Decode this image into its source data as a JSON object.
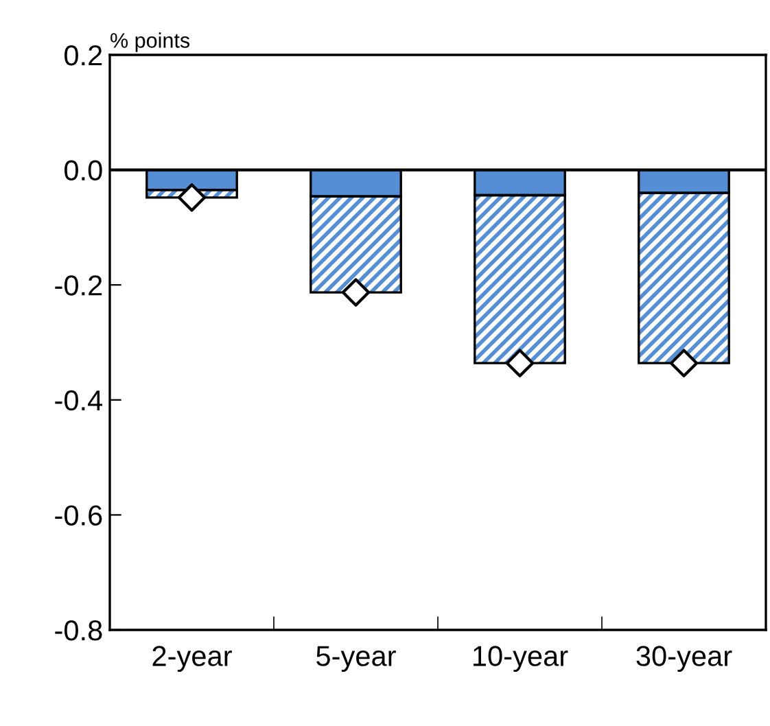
{
  "chart_data": {
    "type": "bar",
    "stacked": true,
    "ylabel": "% points",
    "categories": [
      "2-year",
      "5-year",
      "10-year",
      "30-year"
    ],
    "series": [
      {
        "color": "#558ed5",
        "values": [
          -0.035,
          -0.046,
          -0.044,
          -0.04
        ]
      },
      {
        "color": "#558ed5",
        "values": [
          -0.013,
          -0.167,
          -0.292,
          -0.296
        ]
      },
      {
        "type": "scatter",
        "color": "#ffffff",
        "marker": "diamond",
        "x": [
          "2-year",
          "5-year",
          "10-year",
          "30-year"
        ],
        "values": [
          -0.048,
          -0.213,
          -0.336,
          -0.336
        ]
      }
    ],
    "ylim": [
      -0.8,
      0.2
    ],
    "yticks": [
      {
        "value": -0.8,
        "label": "-0.8"
      },
      {
        "value": -0.6,
        "label": "-0.6"
      },
      {
        "value": -0.4,
        "label": "-0.4"
      },
      {
        "value": -0.2,
        "label": "-0.2"
      },
      {
        "value": 0,
        "label": "0.0"
      },
      {
        "value": 0.2,
        "label": "0.2"
      }
    ],
    "ref_lines": [
      {
        "axis": "y",
        "value": 0,
        "color": "#000000"
      }
    ]
  }
}
